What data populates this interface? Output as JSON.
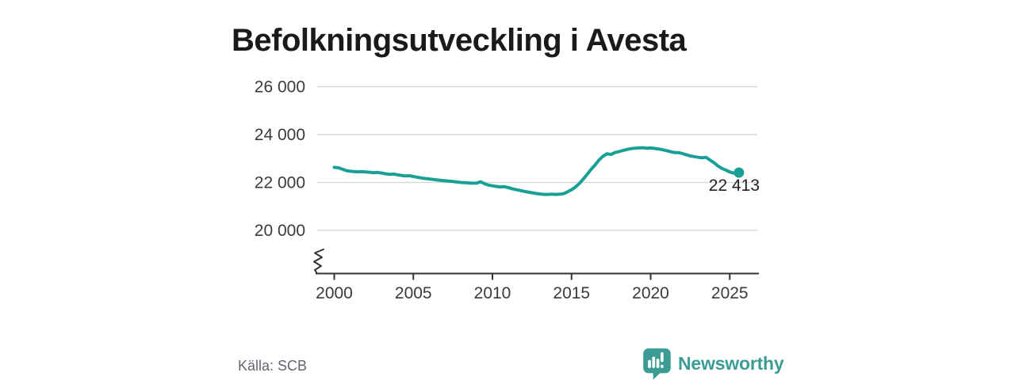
{
  "page": {
    "brand": {
      "name": "Newsworthy",
      "color": "#3b9c94"
    }
  },
  "chart_data": {
    "type": "line",
    "title": "Befolkningsutveckling i Avesta",
    "source": "Källa: SCB",
    "xlabel": "",
    "ylabel": "",
    "x_ticks": [
      2000,
      2005,
      2010,
      2015,
      2020,
      2025
    ],
    "y_ticks": [
      20000,
      22000,
      24000,
      26000
    ],
    "y_tick_labels": [
      "20 000",
      "22 000",
      "24 000",
      "26 000"
    ],
    "xlim": [
      1999.9,
      2026.9
    ],
    "ylim_display": [
      19400,
      26700
    ],
    "axis_break": true,
    "grid": "horizontal",
    "line_color": "#18a096",
    "grid_color": "#d9d9d9",
    "axis_color": "#333333",
    "label_color": "#3a3a3a",
    "end_label": "22 413",
    "end_value": 22413,
    "legend": "none",
    "series": [
      {
        "name": "Befolkning i Avesta",
        "points": [
          [
            2000.0,
            22630
          ],
          [
            2000.25,
            22615
          ],
          [
            2000.5,
            22560
          ],
          [
            2000.75,
            22500
          ],
          [
            2001.0,
            22470
          ],
          [
            2001.25,
            22455
          ],
          [
            2001.5,
            22445
          ],
          [
            2001.75,
            22455
          ],
          [
            2002.0,
            22440
          ],
          [
            2002.25,
            22425
          ],
          [
            2002.5,
            22410
          ],
          [
            2002.75,
            22420
          ],
          [
            2003.0,
            22395
          ],
          [
            2003.25,
            22365
          ],
          [
            2003.5,
            22340
          ],
          [
            2003.75,
            22350
          ],
          [
            2004.0,
            22320
          ],
          [
            2004.25,
            22295
          ],
          [
            2004.5,
            22275
          ],
          [
            2004.75,
            22285
          ],
          [
            2005.0,
            22250
          ],
          [
            2005.25,
            22220
          ],
          [
            2005.5,
            22190
          ],
          [
            2005.75,
            22165
          ],
          [
            2006.0,
            22150
          ],
          [
            2006.25,
            22125
          ],
          [
            2006.5,
            22105
          ],
          [
            2006.75,
            22085
          ],
          [
            2007.0,
            22070
          ],
          [
            2007.25,
            22055
          ],
          [
            2007.5,
            22040
          ],
          [
            2007.75,
            22020
          ],
          [
            2008.0,
            22000
          ],
          [
            2008.25,
            21990
          ],
          [
            2008.5,
            21980
          ],
          [
            2008.75,
            21970
          ],
          [
            2009.0,
            21975
          ],
          [
            2009.25,
            22030
          ],
          [
            2009.5,
            21950
          ],
          [
            2009.75,
            21890
          ],
          [
            2010.0,
            21860
          ],
          [
            2010.25,
            21835
          ],
          [
            2010.5,
            21815
          ],
          [
            2010.75,
            21825
          ],
          [
            2011.0,
            21790
          ],
          [
            2011.25,
            21740
          ],
          [
            2011.5,
            21700
          ],
          [
            2011.75,
            21665
          ],
          [
            2012.0,
            21630
          ],
          [
            2012.25,
            21600
          ],
          [
            2012.5,
            21570
          ],
          [
            2012.75,
            21540
          ],
          [
            2013.0,
            21520
          ],
          [
            2013.25,
            21505
          ],
          [
            2013.5,
            21500
          ],
          [
            2013.75,
            21510
          ],
          [
            2014.0,
            21500
          ],
          [
            2014.25,
            21510
          ],
          [
            2014.5,
            21530
          ],
          [
            2014.75,
            21610
          ],
          [
            2015.0,
            21700
          ],
          [
            2015.25,
            21810
          ],
          [
            2015.5,
            21960
          ],
          [
            2015.75,
            22150
          ],
          [
            2016.0,
            22350
          ],
          [
            2016.25,
            22560
          ],
          [
            2016.5,
            22740
          ],
          [
            2016.75,
            22950
          ],
          [
            2017.0,
            23100
          ],
          [
            2017.25,
            23200
          ],
          [
            2017.5,
            23170
          ],
          [
            2017.75,
            23250
          ],
          [
            2018.0,
            23290
          ],
          [
            2018.25,
            23340
          ],
          [
            2018.5,
            23380
          ],
          [
            2018.75,
            23410
          ],
          [
            2019.0,
            23430
          ],
          [
            2019.25,
            23440
          ],
          [
            2019.5,
            23450
          ],
          [
            2019.75,
            23430
          ],
          [
            2020.0,
            23440
          ],
          [
            2020.25,
            23420
          ],
          [
            2020.5,
            23400
          ],
          [
            2020.75,
            23370
          ],
          [
            2021.0,
            23330
          ],
          [
            2021.25,
            23290
          ],
          [
            2021.5,
            23250
          ],
          [
            2021.75,
            23250
          ],
          [
            2022.0,
            23210
          ],
          [
            2022.25,
            23160
          ],
          [
            2022.5,
            23110
          ],
          [
            2022.75,
            23080
          ],
          [
            2023.0,
            23050
          ],
          [
            2023.25,
            23030
          ],
          [
            2023.5,
            23050
          ],
          [
            2023.75,
            22940
          ],
          [
            2024.0,
            22830
          ],
          [
            2024.25,
            22690
          ],
          [
            2024.5,
            22590
          ],
          [
            2024.75,
            22520
          ],
          [
            2025.0,
            22440
          ],
          [
            2025.25,
            22390
          ],
          [
            2025.58,
            22413
          ]
        ]
      }
    ]
  }
}
